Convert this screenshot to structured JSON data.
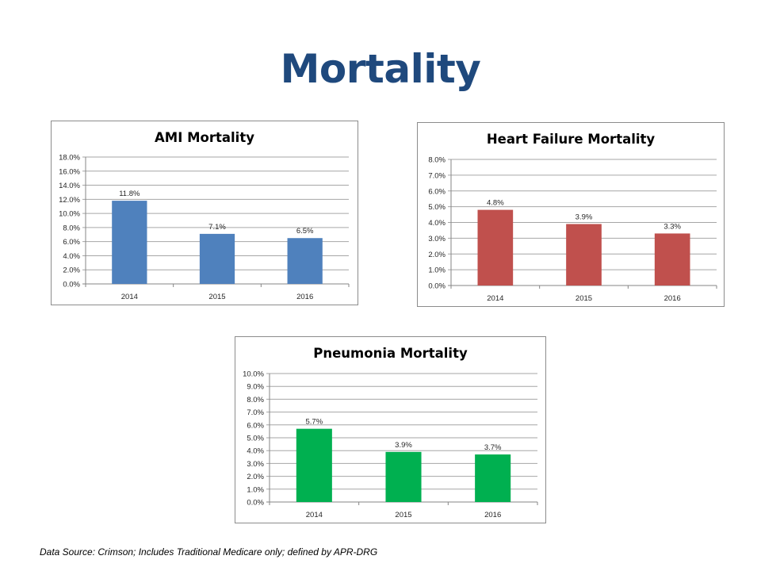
{
  "slide": {
    "title": "Mortality",
    "footnote": "Data Source: Crimson; Includes Traditional Medicare only; defined by APR-DRG"
  },
  "chart_data": [
    {
      "type": "bar",
      "title": "AMI Mortality",
      "categories": [
        "2014",
        "2015",
        "2016"
      ],
      "values": [
        11.8,
        7.1,
        6.5
      ],
      "data_labels": [
        "11.8%",
        "7.1%",
        "6.5%"
      ],
      "ylim": [
        0,
        18
      ],
      "ytick_step": 2,
      "yticks": [
        "0.0%",
        "2.0%",
        "4.0%",
        "6.0%",
        "8.0%",
        "10.0%",
        "12.0%",
        "14.0%",
        "16.0%",
        "18.0%"
      ],
      "color": "#4f81bd",
      "grid": true,
      "legend": "none",
      "xlabel": "",
      "ylabel": ""
    },
    {
      "type": "bar",
      "title": "Heart Failure Mortality",
      "categories": [
        "2014",
        "2015",
        "2016"
      ],
      "values": [
        4.8,
        3.9,
        3.3
      ],
      "data_labels": [
        "4.8%",
        "3.9%",
        "3.3%"
      ],
      "ylim": [
        0,
        8
      ],
      "ytick_step": 1,
      "yticks": [
        "0.0%",
        "1.0%",
        "2.0%",
        "3.0%",
        "4.0%",
        "5.0%",
        "6.0%",
        "7.0%",
        "8.0%"
      ],
      "color": "#c0504d",
      "grid": true,
      "legend": "none",
      "xlabel": "",
      "ylabel": ""
    },
    {
      "type": "bar",
      "title": "Pneumonia Mortality",
      "categories": [
        "2014",
        "2015",
        "2016"
      ],
      "values": [
        5.7,
        3.9,
        3.7
      ],
      "data_labels": [
        "5.7%",
        "3.9%",
        "3.7%"
      ],
      "ylim": [
        0,
        10
      ],
      "ytick_step": 1,
      "yticks": [
        "0.0%",
        "1.0%",
        "2.0%",
        "3.0%",
        "4.0%",
        "5.0%",
        "6.0%",
        "7.0%",
        "8.0%",
        "9.0%",
        "10.0%"
      ],
      "color": "#00b050",
      "grid": true,
      "legend": "none",
      "xlabel": "",
      "ylabel": ""
    }
  ]
}
